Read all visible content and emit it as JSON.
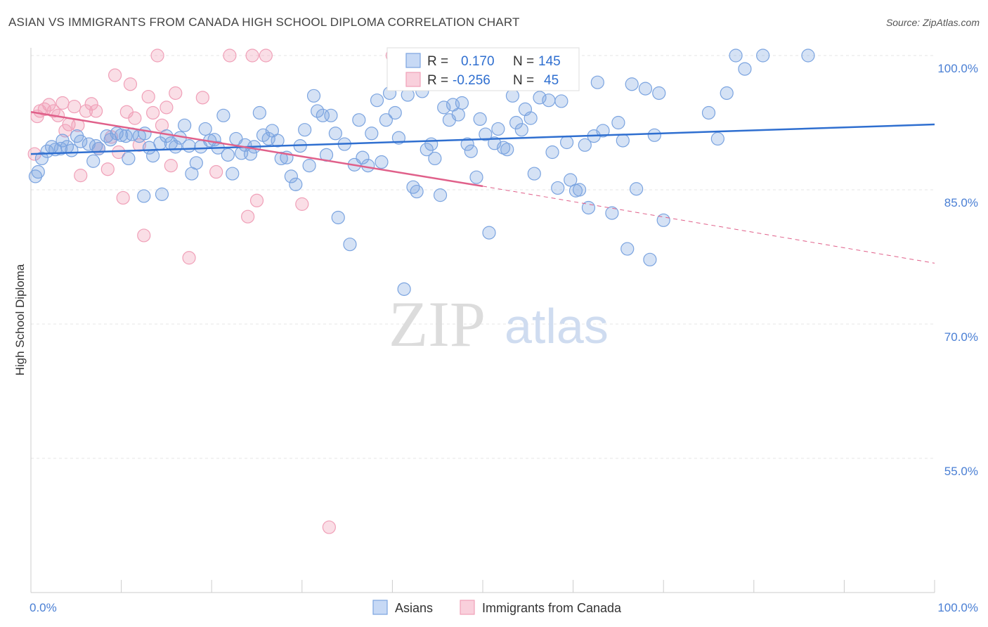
{
  "title": "ASIAN VS IMMIGRANTS FROM CANADA HIGH SCHOOL DIPLOMA CORRELATION CHART",
  "source": "Source: ZipAtlas.com",
  "watermark": {
    "zip": "ZIP",
    "atlas": "atlas"
  },
  "legend_box": {
    "rows": [
      {
        "r_label": "R =",
        "r_value": "0.170",
        "n_label": "N =",
        "n_value": "145"
      },
      {
        "r_label": "R =",
        "r_value": "-0.256",
        "n_label": "N =",
        "n_value": "45"
      }
    ]
  },
  "chart_data": {
    "type": "scatter",
    "title": "ASIAN VS IMMIGRANTS FROM CANADA HIGH SCHOOL DIPLOMA CORRELATION CHART",
    "xlabel": "",
    "ylabel": "High School Diploma",
    "xlim": [
      0,
      100
    ],
    "ylim": [
      40,
      101
    ],
    "x_tick_labels": [
      "0.0%",
      "100.0%"
    ],
    "y_ticks": [
      {
        "value": 100,
        "label": "100.0%"
      },
      {
        "value": 85,
        "label": "85.0%"
      },
      {
        "value": 70,
        "label": "70.0%"
      },
      {
        "value": 55,
        "label": "55.0%"
      }
    ],
    "grid": true,
    "legend_position": "top-center",
    "colors": {
      "asians": "#7ba4e0",
      "asians_line": "#2f6fd0",
      "canada": "#f0a0b8",
      "canada_line": "#e0608a"
    },
    "series": [
      {
        "name": "Asians",
        "r": 0.17,
        "n": 145,
        "trend": {
          "x": [
            0,
            100
          ],
          "y": [
            89.0,
            92.3
          ]
        },
        "points": [
          [
            0.5,
            86.5
          ],
          [
            0.8,
            87
          ],
          [
            1.2,
            88.5
          ],
          [
            1.8,
            89.3
          ],
          [
            2.3,
            89.8
          ],
          [
            2.7,
            89.5
          ],
          [
            3.3,
            89.6
          ],
          [
            3.5,
            90.5
          ],
          [
            4.0,
            89.8
          ],
          [
            4.5,
            89.4
          ],
          [
            5.1,
            91.0
          ],
          [
            5.5,
            90.4
          ],
          [
            6.4,
            90.1
          ],
          [
            6.9,
            88.2
          ],
          [
            7.2,
            89.9
          ],
          [
            7.5,
            89.6
          ],
          [
            8.4,
            91.0
          ],
          [
            8.8,
            90.6
          ],
          [
            9.5,
            91.3
          ],
          [
            10.0,
            91.1
          ],
          [
            10.5,
            91.0
          ],
          [
            10.8,
            88.5
          ],
          [
            11.2,
            91.2
          ],
          [
            12.0,
            91.0
          ],
          [
            12.5,
            84.3
          ],
          [
            12.6,
            91.3
          ],
          [
            13.1,
            89.7
          ],
          [
            13.5,
            88.8
          ],
          [
            14.3,
            90.2
          ],
          [
            14.5,
            84.5
          ],
          [
            15.0,
            91.0
          ],
          [
            15.5,
            90.2
          ],
          [
            16.0,
            89.8
          ],
          [
            16.5,
            90.8
          ],
          [
            17.0,
            92.2
          ],
          [
            17.5,
            89.9
          ],
          [
            17.8,
            86.8
          ],
          [
            18.3,
            88.0
          ],
          [
            18.8,
            89.8
          ],
          [
            19.3,
            91.8
          ],
          [
            19.8,
            90.5
          ],
          [
            20.3,
            90.6
          ],
          [
            20.7,
            89.7
          ],
          [
            21.3,
            93.3
          ],
          [
            21.8,
            88.9
          ],
          [
            22.3,
            86.8
          ],
          [
            22.7,
            90.7
          ],
          [
            23.3,
            89.1
          ],
          [
            23.7,
            90.0
          ],
          [
            24.3,
            89.0
          ],
          [
            24.7,
            89.8
          ],
          [
            25.3,
            93.6
          ],
          [
            25.7,
            91.1
          ],
          [
            26.3,
            90.7
          ],
          [
            26.7,
            91.6
          ],
          [
            27.3,
            90.5
          ],
          [
            27.7,
            88.5
          ],
          [
            28.3,
            88.6
          ],
          [
            28.8,
            86.5
          ],
          [
            29.3,
            85.6
          ],
          [
            29.8,
            89.9
          ],
          [
            30.3,
            91.7
          ],
          [
            30.8,
            87.7
          ],
          [
            31.3,
            95.5
          ],
          [
            31.7,
            93.8
          ],
          [
            32.3,
            93.3
          ],
          [
            32.7,
            88.9
          ],
          [
            33.2,
            93.3
          ],
          [
            33.7,
            91.3
          ],
          [
            34.0,
            81.9
          ],
          [
            34.7,
            90.1
          ],
          [
            35.3,
            78.9
          ],
          [
            35.8,
            87.8
          ],
          [
            36.3,
            92.8
          ],
          [
            36.7,
            88.6
          ],
          [
            37.3,
            87.7
          ],
          [
            37.7,
            91.3
          ],
          [
            38.3,
            95.0
          ],
          [
            38.8,
            88.1
          ],
          [
            39.3,
            92.8
          ],
          [
            39.7,
            95.8
          ],
          [
            40.3,
            93.6
          ],
          [
            40.7,
            90.8
          ],
          [
            41.3,
            73.9
          ],
          [
            41.7,
            95.6
          ],
          [
            42.3,
            85.3
          ],
          [
            42.7,
            84.8
          ],
          [
            43.3,
            96.0
          ],
          [
            43.8,
            89.5
          ],
          [
            44.3,
            90.1
          ],
          [
            44.7,
            88.5
          ],
          [
            45.3,
            84.4
          ],
          [
            45.7,
            94.2
          ],
          [
            46.3,
            92.8
          ],
          [
            46.7,
            94.5
          ],
          [
            47.3,
            93.4
          ],
          [
            47.7,
            94.7
          ],
          [
            48.3,
            90.1
          ],
          [
            48.7,
            89.3
          ],
          [
            49.3,
            86.4
          ],
          [
            49.7,
            92.9
          ],
          [
            50.3,
            91.2
          ],
          [
            50.7,
            80.2
          ],
          [
            51.3,
            90.2
          ],
          [
            51.7,
            91.8
          ],
          [
            52.3,
            89.7
          ],
          [
            52.7,
            89.5
          ],
          [
            53.3,
            95.5
          ],
          [
            53.7,
            92.5
          ],
          [
            54.3,
            91.7
          ],
          [
            54.7,
            94.0
          ],
          [
            55.3,
            93.0
          ],
          [
            55.7,
            86.8
          ],
          [
            56.3,
            95.3
          ],
          [
            56.7,
            96.8
          ],
          [
            57.3,
            95.0
          ],
          [
            57.7,
            89.2
          ],
          [
            58.3,
            85.2
          ],
          [
            58.7,
            94.9
          ],
          [
            59.3,
            90.3
          ],
          [
            59.7,
            86.1
          ],
          [
            60.3,
            84.9
          ],
          [
            60.7,
            85.0
          ],
          [
            61.3,
            90.0
          ],
          [
            61.7,
            83.0
          ],
          [
            62.3,
            91.0
          ],
          [
            62.7,
            97.0
          ],
          [
            63.3,
            91.6
          ],
          [
            64.3,
            82.4
          ],
          [
            65.0,
            92.5
          ],
          [
            65.5,
            90.5
          ],
          [
            66.0,
            78.4
          ],
          [
            66.5,
            96.8
          ],
          [
            67.0,
            85.1
          ],
          [
            68.0,
            96.3
          ],
          [
            68.5,
            77.2
          ],
          [
            69.0,
            91.1
          ],
          [
            69.5,
            95.8
          ],
          [
            70.0,
            81.6
          ],
          [
            75.0,
            93.6
          ],
          [
            76.0,
            90.7
          ],
          [
            77.0,
            95.8
          ],
          [
            78.0,
            100.0
          ],
          [
            79.0,
            98.5
          ],
          [
            81.0,
            100.0
          ],
          [
            86.0,
            100.0
          ]
        ]
      },
      {
        "name": "Immigrants from Canada",
        "r": -0.256,
        "n": 45,
        "trend": {
          "x": [
            0,
            50
          ],
          "y": [
            93.7,
            85.4
          ]
        },
        "trend_dashed": {
          "x": [
            50,
            100
          ],
          "y": [
            85.4,
            76.8
          ]
        },
        "points": [
          [
            0.4,
            89.0
          ],
          [
            0.7,
            93.2
          ],
          [
            1.0,
            93.8
          ],
          [
            1.5,
            94.0
          ],
          [
            2.0,
            94.5
          ],
          [
            2.5,
            93.8
          ],
          [
            3.0,
            93.3
          ],
          [
            3.5,
            94.7
          ],
          [
            3.8,
            91.6
          ],
          [
            4.2,
            92.3
          ],
          [
            4.8,
            94.3
          ],
          [
            5.2,
            92.2
          ],
          [
            5.5,
            86.6
          ],
          [
            6.1,
            93.8
          ],
          [
            6.7,
            94.6
          ],
          [
            7.2,
            93.8
          ],
          [
            7.5,
            89.6
          ],
          [
            8.5,
            87.3
          ],
          [
            8.9,
            90.9
          ],
          [
            9.3,
            97.8
          ],
          [
            9.7,
            89.2
          ],
          [
            10.2,
            84.1
          ],
          [
            10.6,
            93.7
          ],
          [
            11.0,
            96.8
          ],
          [
            11.5,
            93.0
          ],
          [
            12.0,
            90.0
          ],
          [
            12.5,
            79.9
          ],
          [
            13.0,
            95.4
          ],
          [
            13.5,
            93.6
          ],
          [
            14.0,
            100.0
          ],
          [
            14.5,
            92.2
          ],
          [
            15.0,
            94.2
          ],
          [
            15.5,
            87.7
          ],
          [
            16.0,
            95.8
          ],
          [
            17.5,
            77.4
          ],
          [
            19.0,
            95.3
          ],
          [
            20.5,
            87.0
          ],
          [
            22.0,
            100.0
          ],
          [
            24.0,
            82.0
          ],
          [
            24.5,
            100.0
          ],
          [
            25.0,
            83.8
          ],
          [
            26.0,
            100.0
          ],
          [
            30.0,
            83.4
          ],
          [
            33.0,
            47.3
          ],
          [
            40.0,
            100.0
          ]
        ]
      }
    ]
  },
  "bottom_legend": {
    "items": [
      "Asians",
      "Immigrants from Canada"
    ]
  }
}
